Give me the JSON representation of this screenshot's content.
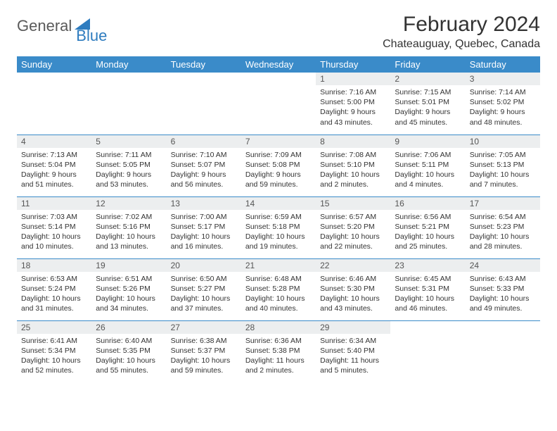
{
  "logo": {
    "general": "General",
    "blue": "Blue"
  },
  "header": {
    "month_title": "February 2024",
    "location": "Chateauguay, Quebec, Canada"
  },
  "colors": {
    "header_bg": "#3a8bc9",
    "header_text": "#ffffff",
    "daynum_bg": "#eceeef",
    "row_border": "#3a8bc9",
    "body_text": "#333333",
    "logo_gray": "#5a5a5a",
    "logo_blue": "#2e7cbf"
  },
  "weekdays": [
    "Sunday",
    "Monday",
    "Tuesday",
    "Wednesday",
    "Thursday",
    "Friday",
    "Saturday"
  ],
  "weeks": [
    [
      {
        "empty": true
      },
      {
        "empty": true
      },
      {
        "empty": true
      },
      {
        "empty": true
      },
      {
        "day": "1",
        "sunrise": "Sunrise: 7:16 AM",
        "sunset": "Sunset: 5:00 PM",
        "daylight": "Daylight: 9 hours and 43 minutes."
      },
      {
        "day": "2",
        "sunrise": "Sunrise: 7:15 AM",
        "sunset": "Sunset: 5:01 PM",
        "daylight": "Daylight: 9 hours and 45 minutes."
      },
      {
        "day": "3",
        "sunrise": "Sunrise: 7:14 AM",
        "sunset": "Sunset: 5:02 PM",
        "daylight": "Daylight: 9 hours and 48 minutes."
      }
    ],
    [
      {
        "day": "4",
        "sunrise": "Sunrise: 7:13 AM",
        "sunset": "Sunset: 5:04 PM",
        "daylight": "Daylight: 9 hours and 51 minutes."
      },
      {
        "day": "5",
        "sunrise": "Sunrise: 7:11 AM",
        "sunset": "Sunset: 5:05 PM",
        "daylight": "Daylight: 9 hours and 53 minutes."
      },
      {
        "day": "6",
        "sunrise": "Sunrise: 7:10 AM",
        "sunset": "Sunset: 5:07 PM",
        "daylight": "Daylight: 9 hours and 56 minutes."
      },
      {
        "day": "7",
        "sunrise": "Sunrise: 7:09 AM",
        "sunset": "Sunset: 5:08 PM",
        "daylight": "Daylight: 9 hours and 59 minutes."
      },
      {
        "day": "8",
        "sunrise": "Sunrise: 7:08 AM",
        "sunset": "Sunset: 5:10 PM",
        "daylight": "Daylight: 10 hours and 2 minutes."
      },
      {
        "day": "9",
        "sunrise": "Sunrise: 7:06 AM",
        "sunset": "Sunset: 5:11 PM",
        "daylight": "Daylight: 10 hours and 4 minutes."
      },
      {
        "day": "10",
        "sunrise": "Sunrise: 7:05 AM",
        "sunset": "Sunset: 5:13 PM",
        "daylight": "Daylight: 10 hours and 7 minutes."
      }
    ],
    [
      {
        "day": "11",
        "sunrise": "Sunrise: 7:03 AM",
        "sunset": "Sunset: 5:14 PM",
        "daylight": "Daylight: 10 hours and 10 minutes."
      },
      {
        "day": "12",
        "sunrise": "Sunrise: 7:02 AM",
        "sunset": "Sunset: 5:16 PM",
        "daylight": "Daylight: 10 hours and 13 minutes."
      },
      {
        "day": "13",
        "sunrise": "Sunrise: 7:00 AM",
        "sunset": "Sunset: 5:17 PM",
        "daylight": "Daylight: 10 hours and 16 minutes."
      },
      {
        "day": "14",
        "sunrise": "Sunrise: 6:59 AM",
        "sunset": "Sunset: 5:18 PM",
        "daylight": "Daylight: 10 hours and 19 minutes."
      },
      {
        "day": "15",
        "sunrise": "Sunrise: 6:57 AM",
        "sunset": "Sunset: 5:20 PM",
        "daylight": "Daylight: 10 hours and 22 minutes."
      },
      {
        "day": "16",
        "sunrise": "Sunrise: 6:56 AM",
        "sunset": "Sunset: 5:21 PM",
        "daylight": "Daylight: 10 hours and 25 minutes."
      },
      {
        "day": "17",
        "sunrise": "Sunrise: 6:54 AM",
        "sunset": "Sunset: 5:23 PM",
        "daylight": "Daylight: 10 hours and 28 minutes."
      }
    ],
    [
      {
        "day": "18",
        "sunrise": "Sunrise: 6:53 AM",
        "sunset": "Sunset: 5:24 PM",
        "daylight": "Daylight: 10 hours and 31 minutes."
      },
      {
        "day": "19",
        "sunrise": "Sunrise: 6:51 AM",
        "sunset": "Sunset: 5:26 PM",
        "daylight": "Daylight: 10 hours and 34 minutes."
      },
      {
        "day": "20",
        "sunrise": "Sunrise: 6:50 AM",
        "sunset": "Sunset: 5:27 PM",
        "daylight": "Daylight: 10 hours and 37 minutes."
      },
      {
        "day": "21",
        "sunrise": "Sunrise: 6:48 AM",
        "sunset": "Sunset: 5:28 PM",
        "daylight": "Daylight: 10 hours and 40 minutes."
      },
      {
        "day": "22",
        "sunrise": "Sunrise: 6:46 AM",
        "sunset": "Sunset: 5:30 PM",
        "daylight": "Daylight: 10 hours and 43 minutes."
      },
      {
        "day": "23",
        "sunrise": "Sunrise: 6:45 AM",
        "sunset": "Sunset: 5:31 PM",
        "daylight": "Daylight: 10 hours and 46 minutes."
      },
      {
        "day": "24",
        "sunrise": "Sunrise: 6:43 AM",
        "sunset": "Sunset: 5:33 PM",
        "daylight": "Daylight: 10 hours and 49 minutes."
      }
    ],
    [
      {
        "day": "25",
        "sunrise": "Sunrise: 6:41 AM",
        "sunset": "Sunset: 5:34 PM",
        "daylight": "Daylight: 10 hours and 52 minutes."
      },
      {
        "day": "26",
        "sunrise": "Sunrise: 6:40 AM",
        "sunset": "Sunset: 5:35 PM",
        "daylight": "Daylight: 10 hours and 55 minutes."
      },
      {
        "day": "27",
        "sunrise": "Sunrise: 6:38 AM",
        "sunset": "Sunset: 5:37 PM",
        "daylight": "Daylight: 10 hours and 59 minutes."
      },
      {
        "day": "28",
        "sunrise": "Sunrise: 6:36 AM",
        "sunset": "Sunset: 5:38 PM",
        "daylight": "Daylight: 11 hours and 2 minutes."
      },
      {
        "day": "29",
        "sunrise": "Sunrise: 6:34 AM",
        "sunset": "Sunset: 5:40 PM",
        "daylight": "Daylight: 11 hours and 5 minutes."
      },
      {
        "empty": true
      },
      {
        "empty": true
      }
    ]
  ]
}
